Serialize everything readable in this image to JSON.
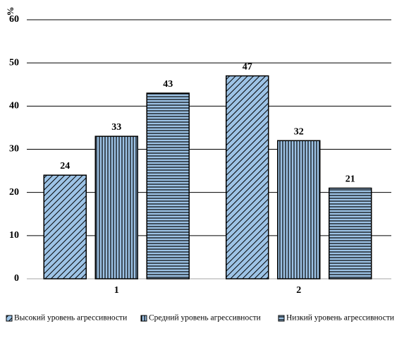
{
  "chart_data": {
    "type": "bar",
    "categories": [
      "1",
      "2"
    ],
    "series": [
      {
        "name": "Высокий уровень агрессивности",
        "values": [
          24,
          47
        ],
        "pattern": "diagonal"
      },
      {
        "name": "Средний уровень агрессивности",
        "values": [
          33,
          32
        ],
        "pattern": "vertical"
      },
      {
        "name": "Низкий уровень агрессивности",
        "values": [
          43,
          21
        ],
        "pattern": "horizontal"
      }
    ],
    "ylabel": "%",
    "ylim": [
      0,
      60
    ],
    "yticks": [
      0,
      10,
      20,
      30,
      40,
      50,
      60
    ],
    "grid": true,
    "data_labels": true,
    "legend_position": "bottom",
    "colors": {
      "fill": "#9dc3e6",
      "stroke": "#000000",
      "grid": "#000000",
      "axis": "#a6a6a6"
    }
  }
}
